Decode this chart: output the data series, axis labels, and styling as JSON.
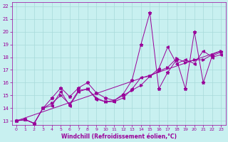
{
  "xlabel": "Windchill (Refroidissement éolien,°C)",
  "background_color": "#c8f0f0",
  "grid_color": "#a8dada",
  "line_color": "#990099",
  "xlim": [
    -0.5,
    23.5
  ],
  "ylim": [
    12.7,
    22.3
  ],
  "xticks": [
    0,
    1,
    2,
    3,
    4,
    5,
    6,
    7,
    8,
    9,
    10,
    11,
    12,
    13,
    14,
    15,
    16,
    17,
    18,
    19,
    20,
    21,
    22,
    23
  ],
  "yticks": [
    13,
    14,
    15,
    16,
    17,
    18,
    19,
    20,
    21,
    22
  ],
  "line1_x": [
    0,
    1,
    2,
    3,
    4,
    5,
    6,
    7,
    8,
    9,
    10,
    11,
    12,
    13,
    14,
    15,
    16,
    17,
    18,
    19,
    20,
    21,
    22,
    23
  ],
  "line1_y": [
    13.0,
    13.1,
    12.8,
    14.0,
    14.8,
    15.6,
    14.9,
    15.6,
    16.0,
    15.2,
    14.8,
    14.6,
    15.1,
    16.2,
    19.0,
    21.5,
    15.5,
    16.8,
    17.8,
    15.5,
    20.0,
    16.0,
    18.1,
    18.4
  ],
  "line2_x": [
    0,
    1,
    2,
    3,
    4,
    5,
    6,
    7,
    8,
    9,
    10,
    11,
    12,
    13,
    14,
    15,
    16,
    17,
    18,
    19,
    20,
    21,
    22,
    23
  ],
  "line2_y": [
    13.0,
    13.1,
    12.8,
    14.0,
    14.4,
    15.0,
    14.3,
    15.4,
    15.5,
    14.8,
    14.5,
    14.6,
    15.0,
    15.4,
    15.8,
    16.5,
    16.9,
    17.2,
    17.9,
    17.6,
    17.8,
    17.8,
    18.2,
    18.5
  ],
  "line3_x": [
    0,
    1,
    2,
    3,
    4,
    5,
    6,
    7,
    8,
    9,
    10,
    11,
    12,
    13,
    14,
    15,
    16,
    17,
    18,
    19,
    20,
    21,
    22,
    23
  ],
  "line3_y": [
    13.0,
    13.1,
    12.8,
    14.0,
    14.2,
    15.3,
    14.2,
    15.3,
    15.5,
    14.7,
    14.5,
    14.5,
    14.8,
    15.5,
    16.4,
    16.5,
    17.1,
    18.8,
    17.5,
    17.8,
    17.5,
    18.5,
    18.0,
    18.2
  ],
  "line4_x": [
    0,
    23
  ],
  "line4_y": [
    13.0,
    18.5
  ],
  "figsize": [
    3.2,
    2.0
  ],
  "dpi": 100
}
